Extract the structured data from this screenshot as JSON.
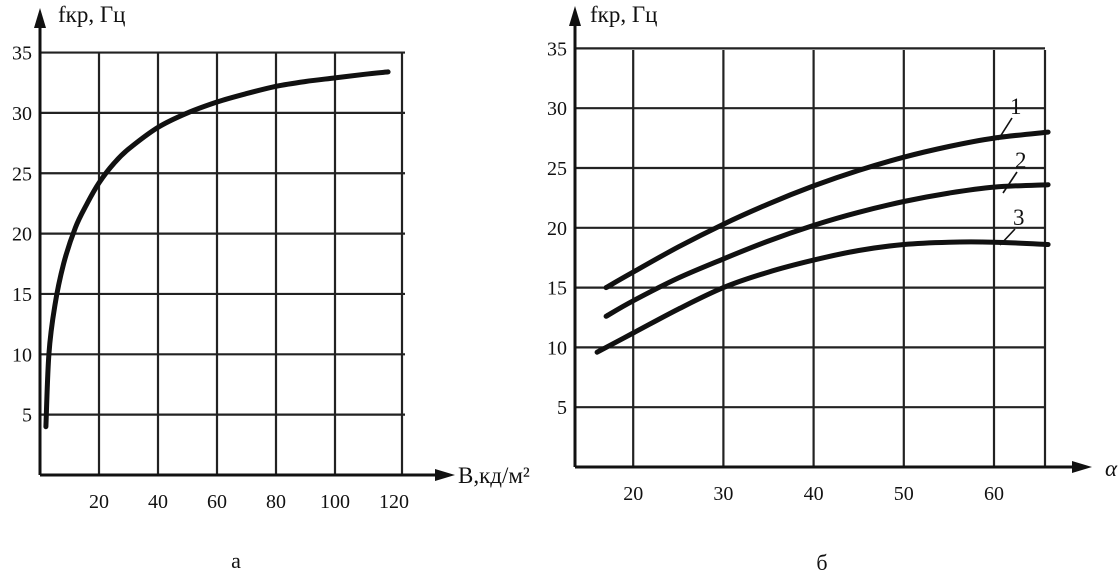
{
  "chart_data": [
    {
      "type": "line",
      "panel_label": "а",
      "xlabel": "B,кд/м²",
      "ylabel": "fкр, Гц",
      "xlim": [
        0,
        130
      ],
      "ylim": [
        0,
        35
      ],
      "xticks": [
        20,
        40,
        60,
        80,
        100,
        120
      ],
      "yticks": [
        5,
        10,
        15,
        20,
        25,
        30,
        35
      ],
      "grid": true,
      "series": [
        {
          "x": [
            2,
            3,
            5,
            8,
            12,
            16,
            20,
            25,
            30,
            40,
            50,
            60,
            70,
            80,
            90,
            100,
            110,
            118
          ],
          "values": [
            4,
            10,
            14,
            17.5,
            20.5,
            22.5,
            24.2,
            25.8,
            27,
            28.8,
            30,
            30.9,
            31.6,
            32.2,
            32.6,
            32.9,
            33.2,
            33.4
          ]
        }
      ]
    },
    {
      "type": "line",
      "panel_label": "б",
      "xlabel": "α",
      "ylabel": "fкр, Гц",
      "xlim": [
        10,
        66
      ],
      "ylim": [
        0,
        35
      ],
      "xticks": [
        20,
        30,
        40,
        50,
        60
      ],
      "yticks": [
        5,
        10,
        15,
        20,
        25,
        30,
        35
      ],
      "grid": true,
      "series": [
        {
          "name": "1",
          "x": [
            17,
            20,
            25,
            30,
            35,
            40,
            45,
            50,
            55,
            60,
            66
          ],
          "values": [
            15,
            16.3,
            18.4,
            20.3,
            22,
            23.5,
            24.8,
            25.9,
            26.8,
            27.5,
            28
          ]
        },
        {
          "name": "2",
          "x": [
            17,
            20,
            25,
            30,
            35,
            40,
            45,
            50,
            55,
            60,
            66
          ],
          "values": [
            12.6,
            13.9,
            15.8,
            17.4,
            18.9,
            20.2,
            21.3,
            22.2,
            22.9,
            23.4,
            23.6
          ]
        },
        {
          "name": "3",
          "x": [
            16,
            20,
            25,
            30,
            35,
            40,
            45,
            50,
            55,
            60,
            66
          ],
          "values": [
            9.6,
            11.2,
            13.2,
            15,
            16.3,
            17.3,
            18.1,
            18.6,
            18.8,
            18.8,
            18.6
          ]
        }
      ]
    }
  ]
}
